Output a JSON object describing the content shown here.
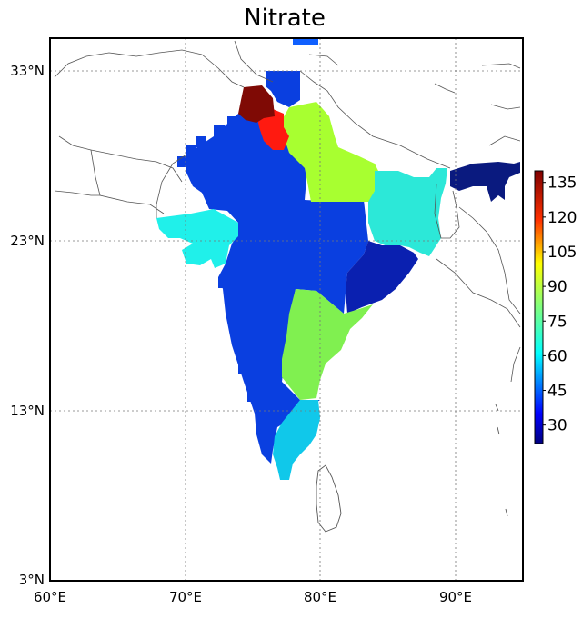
{
  "map": {
    "title": "Nitrate",
    "lon_range": [
      60,
      95
    ],
    "lat_range": [
      3,
      36
    ],
    "lon_ticks": [
      "60°E",
      "70°E",
      "80°E",
      "90°E"
    ],
    "lon_values": [
      60,
      70,
      80,
      90
    ],
    "lat_ticks": [
      "33°N",
      "23°N",
      "13°N",
      "3°N"
    ],
    "lat_values": [
      33,
      23,
      13,
      3
    ],
    "gridlines": "dotted",
    "projection": "lat-lon",
    "basemap": "coastlines-and-borders"
  },
  "colorbar": {
    "ticks": [
      "135",
      "120",
      "105",
      "90",
      "75",
      "60",
      "45",
      "30"
    ],
    "tick_values": [
      135,
      120,
      105,
      90,
      75,
      60,
      45,
      30
    ],
    "range": [
      22,
      140
    ],
    "colormap": "jet",
    "placement": "right",
    "colors": [
      "#00007f",
      "#0000ff",
      "#007fff",
      "#00ffff",
      "#7fff7f",
      "#ffff00",
      "#ff7f00",
      "#ff0000",
      "#7f0000"
    ]
  },
  "regions": [
    {
      "name": "Indo-Gangetic plain / Uttar Pradesh",
      "value": 80,
      "color": "#a8ff30"
    },
    {
      "name": "Punjab",
      "value": 125,
      "color": "#ff1a10"
    },
    {
      "name": "Kashmir",
      "value": 140,
      "color": "#7f0a05"
    },
    {
      "name": "Bihar / West Bengal",
      "value": 60,
      "color": "#2ce8d8"
    },
    {
      "name": "Northeast India",
      "value": 25,
      "color": "#0a1a7f"
    },
    {
      "name": "Gujarat",
      "value": 58,
      "color": "#20f0ea"
    },
    {
      "name": "Central India",
      "value": 38,
      "color": "#0a3fe0"
    },
    {
      "name": "Odisha / Chhattisgarh",
      "value": 28,
      "color": "#0a20b0"
    },
    {
      "name": "Telangana / Andhra",
      "value": 72,
      "color": "#80f050"
    },
    {
      "name": "Tamil Nadu",
      "value": 58,
      "color": "#10c8ea"
    }
  ]
}
